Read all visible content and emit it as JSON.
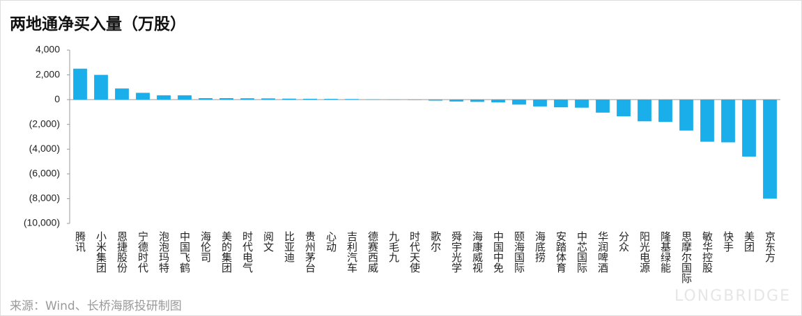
{
  "chart_data": {
    "type": "bar",
    "title": "两地通净买入量（万股）",
    "source": "来源：Wind、长桥海豚投研制图",
    "watermark": "LONGBRIDGE",
    "color": "#1aaeea",
    "categories": [
      "腾讯",
      "小米集团",
      "恩捷股份",
      "宁德时代",
      "泡泡玛特",
      "中国飞鹤",
      "海伦司",
      "美的集团",
      "时代电气",
      "阅文",
      "比亚迪",
      "贵州茅台",
      "心动",
      "吉利汽车",
      "德赛西威",
      "九毛九",
      "时代天使",
      "歌尔",
      "舜宇光学",
      "海康威视",
      "中国中免",
      "颐海国际",
      "海底捞",
      "安踏体育",
      "中芯国际",
      "华润啤酒",
      "分众",
      "阳光电源",
      "隆基绿能",
      "思摩尔国际",
      "敏华控股",
      "快手",
      "美团",
      "京东方"
    ],
    "values": [
      2500,
      2000,
      900,
      550,
      350,
      350,
      120,
      120,
      110,
      100,
      80,
      70,
      60,
      50,
      20,
      10,
      -10,
      -80,
      -150,
      -180,
      -220,
      -400,
      -550,
      -620,
      -650,
      -1050,
      -1350,
      -1750,
      -1800,
      -2500,
      -3400,
      -3450,
      -4600,
      -8000
    ],
    "ylim": [
      -10000,
      4000
    ],
    "yticks": [
      {
        "value": -10000,
        "label": "(10,000)"
      },
      {
        "value": -8000,
        "label": "(8,000)"
      },
      {
        "value": -6000,
        "label": "(6,000)"
      },
      {
        "value": -4000,
        "label": "(4,000)"
      },
      {
        "value": -2000,
        "label": "(2,000)"
      },
      0,
      {
        "value": 2000,
        "label": "2,000"
      },
      {
        "value": 4000,
        "label": "4,000"
      }
    ]
  }
}
